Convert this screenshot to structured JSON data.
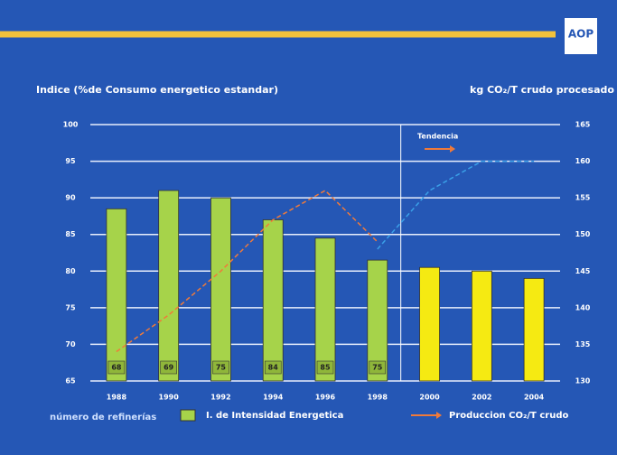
{
  "logo": "AOP",
  "chart_data": {
    "type": "bar",
    "y_label": "Indice (%de Consumo energetico estandar)",
    "y2_label": "kg CO₂/T crudo procesado",
    "categories": [
      "1988",
      "1990",
      "1992",
      "1994",
      "1996",
      "1998",
      "2000",
      "2002",
      "2004"
    ],
    "ylim": [
      65,
      100
    ],
    "yticks": [
      65,
      70,
      75,
      80,
      85,
      90,
      95,
      100
    ],
    "y2lim": [
      130,
      165
    ],
    "y2ticks": [
      130,
      135,
      140,
      145,
      150,
      155,
      160,
      165
    ],
    "grid": true,
    "refineries": {
      "label": "número de refinerías",
      "values": [
        68,
        69,
        75,
        84,
        85,
        75,
        null,
        null,
        null
      ]
    },
    "series": [
      {
        "name": "I. de Intensidad Energetica",
        "type": "bar",
        "color": "#a6d34a",
        "colors": [
          "#a6d34a",
          "#a6d34a",
          "#a6d34a",
          "#a6d34a",
          "#a6d34a",
          "#a6d34a",
          "#f5ea12",
          "#f5ea12",
          "#f5ea12"
        ],
        "values": [
          88.5,
          91,
          90,
          87,
          84.5,
          81.5,
          80.5,
          80,
          79
        ]
      },
      {
        "name": "Produccion CO₂/T crudo",
        "type": "line",
        "axis": "y2",
        "color": "#f07a3a",
        "values": [
          134,
          139,
          145,
          152,
          156,
          149,
          null,
          null,
          null
        ]
      },
      {
        "name": "Tendencia",
        "type": "line",
        "axis": "y2",
        "color": "#3aa0e8",
        "values": [
          null,
          null,
          null,
          null,
          null,
          148,
          156,
          160,
          160
        ]
      }
    ]
  }
}
